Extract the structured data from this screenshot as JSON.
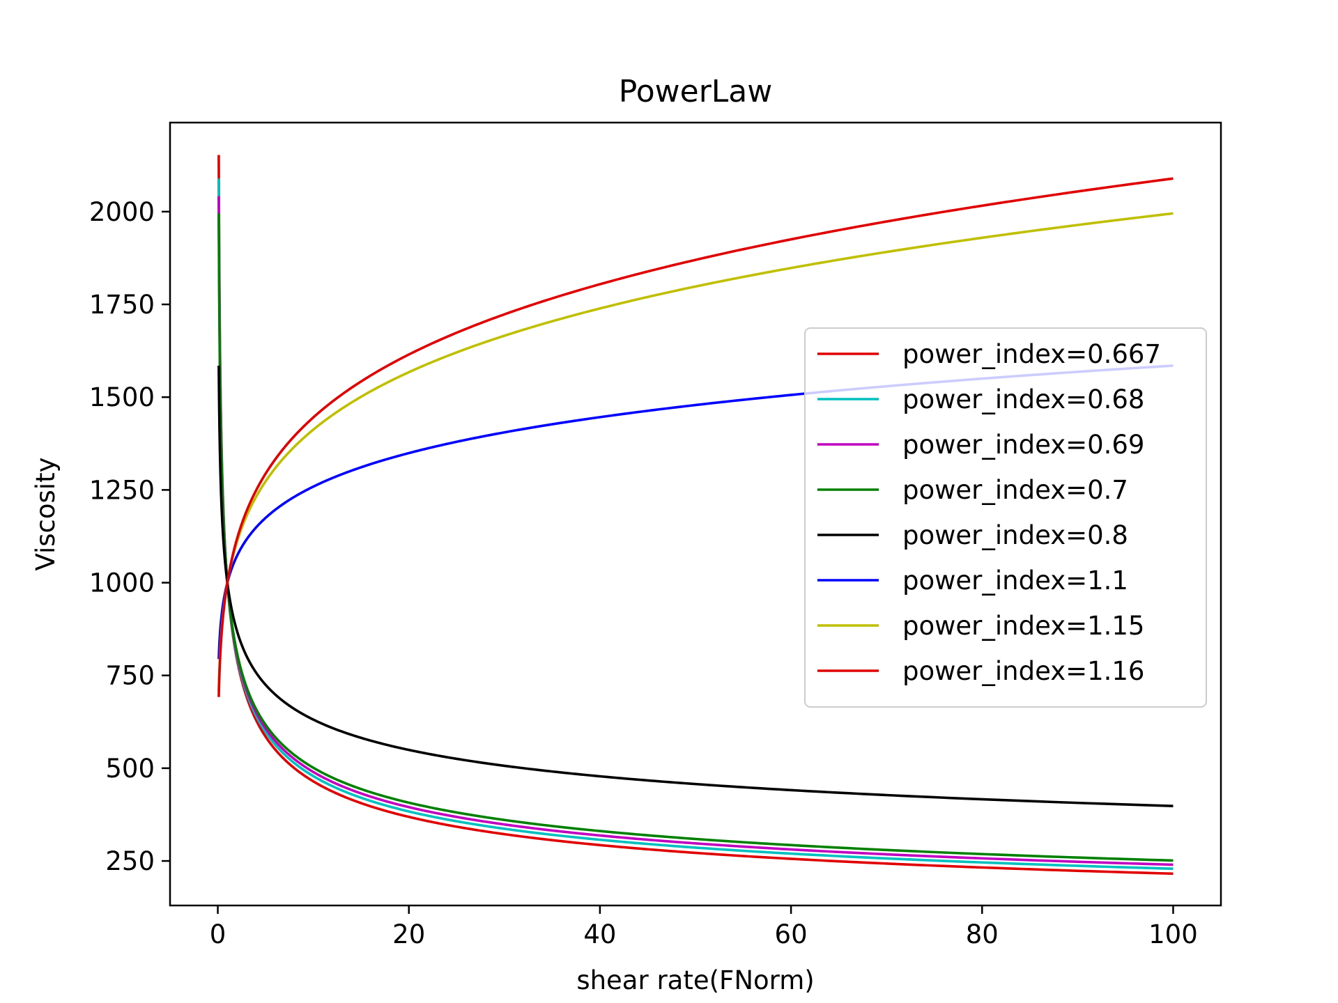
{
  "chart_data": {
    "type": "line",
    "title": "PowerLaw",
    "xlabel": "shear rate(FNorm)",
    "ylabel": "Viscosity",
    "xlim": [
      -5,
      105
    ],
    "ylim": [
      130,
      2240
    ],
    "x_ticks": [
      0,
      20,
      40,
      60,
      80,
      100
    ],
    "y_ticks": [
      250,
      500,
      750,
      1000,
      1250,
      1500,
      1750,
      2000
    ],
    "grid": false,
    "legend_position": "center-right",
    "consistency_index": 1000,
    "x_range": [
      0.1,
      100
    ],
    "series": [
      {
        "name": "power_index=0.667",
        "power_index": 0.667,
        "color": "#e00000"
      },
      {
        "name": "power_index=0.68",
        "power_index": 0.68,
        "color": "#00bfbf"
      },
      {
        "name": "power_index=0.69",
        "power_index": 0.69,
        "color": "#bf00bf"
      },
      {
        "name": "power_index=0.7",
        "power_index": 0.7,
        "color": "#008000"
      },
      {
        "name": "power_index=0.8",
        "power_index": 0.8,
        "color": "#000000"
      },
      {
        "name": "power_index=1.1",
        "power_index": 1.1,
        "color": "#0000ff"
      },
      {
        "name": "power_index=1.15",
        "power_index": 1.15,
        "color": "#bfbf00"
      },
      {
        "name": "power_index=1.16",
        "power_index": 1.16,
        "color": "#e00000"
      }
    ]
  }
}
